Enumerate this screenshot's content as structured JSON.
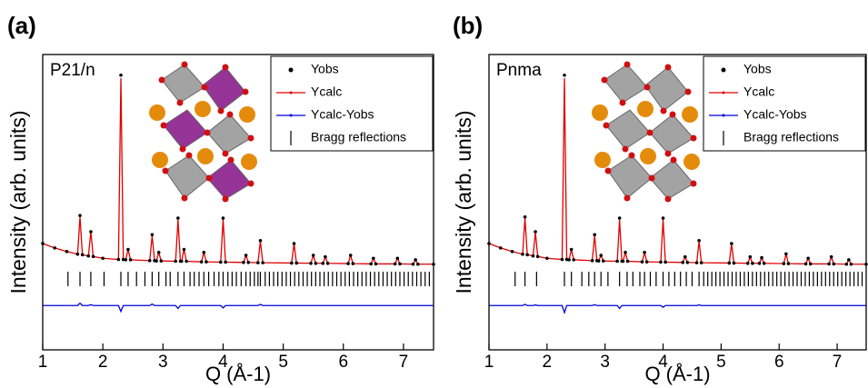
{
  "chart_data": [
    {
      "type": "line",
      "panel_label": "(a)",
      "title": "P21/n",
      "xlabel": "Q (Å-1)",
      "ylabel": "Intensity (arb. units)",
      "xlim": [
        1,
        7.5
      ],
      "xticks": [
        1,
        2,
        3,
        4,
        5,
        6,
        7
      ],
      "ylim": [
        0,
        100
      ],
      "legend": "upper right",
      "x": [
        1.0,
        1.2,
        1.4,
        1.58,
        1.62,
        1.66,
        1.76,
        1.8,
        1.84,
        2.0,
        2.26,
        2.3,
        2.34,
        2.38,
        2.42,
        2.46,
        2.78,
        2.82,
        2.86,
        2.89,
        2.93,
        2.97,
        3.21,
        3.25,
        3.29,
        3.31,
        3.35,
        3.39,
        3.64,
        3.68,
        3.72,
        3.96,
        4.0,
        4.04,
        4.34,
        4.38,
        4.42,
        4.58,
        4.62,
        4.66,
        5.14,
        5.18,
        5.22,
        5.46,
        5.5,
        5.54,
        5.66,
        5.7,
        5.74,
        6.08,
        6.12,
        6.16,
        6.46,
        6.5,
        6.54,
        6.86,
        6.9,
        6.94,
        7.16,
        7.2,
        7.24,
        7.5
      ],
      "series": [
        {
          "name": "Yobs",
          "style": "points",
          "color": "#000000",
          "values": [
            36,
            34.5,
            33.3,
            32.4,
            45.5,
            32.2,
            31.8,
            40,
            31.6,
            31,
            30.6,
            93,
            30.6,
            30.5,
            34,
            30.5,
            30.2,
            39,
            30.2,
            30.1,
            33,
            30.1,
            30,
            44.6,
            30,
            30,
            34,
            30,
            29.8,
            33,
            29.8,
            29.7,
            44.6,
            29.7,
            29.6,
            32,
            29.6,
            29.5,
            37,
            29.5,
            29.4,
            36,
            29.4,
            29.3,
            32,
            29.3,
            29.3,
            31.5,
            29.3,
            29.2,
            32,
            29.2,
            29.1,
            31,
            29.1,
            29.1,
            31,
            29.1,
            29,
            30.5,
            29,
            29
          ]
        },
        {
          "name": "Ycalc",
          "style": "line",
          "color": "#e00000",
          "values": [
            36,
            34.5,
            33.3,
            32.4,
            45,
            32.2,
            31.8,
            40,
            31.6,
            31,
            30.6,
            92,
            30.6,
            30.5,
            34,
            30.5,
            30.2,
            38.6,
            30.2,
            30.1,
            33,
            30.1,
            30,
            44,
            30,
            30,
            34,
            30,
            29.8,
            33,
            29.8,
            29.7,
            44.2,
            29.7,
            29.6,
            32,
            29.6,
            29.5,
            36.8,
            29.5,
            29.4,
            36,
            29.4,
            29.3,
            32,
            29.3,
            29.3,
            31.5,
            29.3,
            29.2,
            32,
            29.2,
            29.1,
            31,
            29.1,
            29.1,
            31,
            29.1,
            29,
            30.5,
            29,
            29
          ]
        },
        {
          "name": "Ycalc-Yobs",
          "style": "line",
          "color": "#0000e0",
          "values": [
            15,
            15,
            15,
            15,
            15.8,
            15,
            15,
            15.3,
            15,
            15,
            15,
            13,
            15,
            15,
            15,
            15,
            15,
            15.5,
            15,
            15,
            15,
            15,
            15,
            14,
            15,
            15,
            15,
            15,
            15,
            15,
            15,
            15,
            14.2,
            15,
            15,
            15,
            15,
            15,
            15.4,
            15,
            15,
            15,
            15,
            15,
            15,
            15,
            15,
            15,
            15,
            15,
            15,
            15,
            15,
            15,
            15,
            15,
            15,
            15,
            15,
            15,
            15,
            15
          ]
        },
        {
          "name": "Bragg reflections",
          "style": "ticks",
          "color": "#000000",
          "x": [
            1.42,
            1.62,
            1.8,
            2.02,
            2.3,
            2.42,
            2.56,
            2.7,
            2.82,
            2.93,
            3.05,
            3.12,
            3.25,
            3.35,
            3.45,
            3.52,
            3.6,
            3.68,
            3.76,
            3.85,
            3.93,
            4.0,
            4.08,
            4.15,
            4.22,
            4.3,
            4.38,
            4.45,
            4.52,
            4.58,
            4.62,
            4.7,
            4.77,
            4.84,
            4.91,
            4.98,
            5.05,
            5.12,
            5.19,
            5.26,
            5.33,
            5.4,
            5.47,
            5.54,
            5.61,
            5.68,
            5.75,
            5.82,
            5.89,
            5.96,
            6.03,
            6.1,
            6.17,
            6.24,
            6.31,
            6.38,
            6.45,
            6.52,
            6.59,
            6.66,
            6.73,
            6.8,
            6.87,
            6.94,
            7.01,
            7.08,
            7.15,
            7.22,
            7.29,
            7.36,
            7.43
          ],
          "values": [
            24,
            24,
            24,
            24,
            24,
            24,
            24,
            24,
            24,
            24,
            24,
            24,
            24,
            24,
            24,
            24,
            24,
            24,
            24,
            24,
            24,
            24,
            24,
            24,
            24,
            24,
            24,
            24,
            24,
            24,
            24,
            24,
            24,
            24,
            24,
            24,
            24,
            24,
            24,
            24,
            24,
            24,
            24,
            24,
            24,
            24,
            24,
            24,
            24,
            24,
            24,
            24,
            24,
            24,
            24,
            24,
            24,
            24,
            24,
            24,
            24,
            24,
            24,
            24,
            24,
            24,
            24,
            24,
            24,
            24,
            24
          ]
        }
      ]
    },
    {
      "type": "line",
      "panel_label": "(b)",
      "title": "Pnma",
      "xlabel": "Q (Å-1)",
      "ylabel": "Intensity (arb. units)",
      "xlim": [
        1,
        7.5
      ],
      "xticks": [
        1,
        2,
        3,
        4,
        5,
        6,
        7
      ],
      "ylim": [
        0,
        100
      ],
      "legend": "upper right",
      "x": [
        1.0,
        1.2,
        1.4,
        1.58,
        1.62,
        1.66,
        1.76,
        1.8,
        1.84,
        2.0,
        2.26,
        2.3,
        2.34,
        2.38,
        2.42,
        2.46,
        2.78,
        2.82,
        2.86,
        2.89,
        2.93,
        2.97,
        3.21,
        3.25,
        3.29,
        3.31,
        3.35,
        3.39,
        3.64,
        3.68,
        3.72,
        3.96,
        4.0,
        4.04,
        4.34,
        4.38,
        4.42,
        4.58,
        4.62,
        4.66,
        5.14,
        5.18,
        5.22,
        5.46,
        5.5,
        5.54,
        5.66,
        5.7,
        5.74,
        6.08,
        6.12,
        6.16,
        6.46,
        6.5,
        6.54,
        6.86,
        6.9,
        6.94,
        7.16,
        7.2,
        7.24,
        7.5
      ],
      "series": [
        {
          "name": "Yobs",
          "style": "points",
          "color": "#000000",
          "values": [
            36,
            34.5,
            33.3,
            32.4,
            45,
            32.2,
            31.8,
            40,
            31.6,
            31,
            30.6,
            93,
            30.6,
            30.5,
            34,
            30.5,
            30.2,
            39,
            30.2,
            30.1,
            32,
            30.1,
            30,
            44.6,
            30,
            30,
            33,
            30,
            29.8,
            33,
            29.8,
            29.7,
            44.6,
            29.7,
            29.6,
            31.5,
            29.6,
            29.5,
            37,
            29.5,
            29.4,
            36,
            29.4,
            29.3,
            31.5,
            29.3,
            29.3,
            31.2,
            29.3,
            29.2,
            32.5,
            29.2,
            29.1,
            31,
            29.1,
            29.1,
            31.5,
            29.1,
            29,
            30.5,
            29,
            29
          ]
        },
        {
          "name": "Ycalc",
          "style": "line",
          "color": "#e00000",
          "values": [
            36,
            34.5,
            33.3,
            32.4,
            44.6,
            32.2,
            31.8,
            39.8,
            31.6,
            31,
            30.6,
            92,
            30.6,
            30.5,
            34,
            30.5,
            30.2,
            38.7,
            30.2,
            30.1,
            32,
            30.1,
            30,
            44,
            30,
            30,
            33,
            30,
            29.8,
            33,
            29.8,
            29.7,
            44.1,
            29.7,
            29.6,
            31.5,
            29.6,
            29.5,
            36.8,
            29.5,
            29.4,
            36,
            29.4,
            29.3,
            31.5,
            29.3,
            29.3,
            31.2,
            29.3,
            29.2,
            32.5,
            29.2,
            29.1,
            31,
            29.1,
            29.1,
            31.5,
            29.1,
            29,
            30.5,
            29,
            29
          ]
        },
        {
          "name": "Ycalc-Yobs",
          "style": "line",
          "color": "#0000e0",
          "values": [
            15,
            15,
            15,
            15,
            15.4,
            15,
            15,
            15.2,
            15,
            15,
            15,
            12.6,
            15,
            15,
            15,
            15,
            15,
            15.3,
            15,
            15,
            15,
            15,
            15,
            14,
            15,
            15,
            15,
            15,
            15,
            15,
            15,
            15,
            14.4,
            15,
            15,
            15,
            15,
            15,
            15.2,
            15,
            15,
            15,
            15,
            15,
            15,
            15,
            15,
            15,
            15,
            15,
            15,
            15,
            15,
            15,
            15,
            15,
            15,
            15,
            15,
            15,
            15,
            15
          ]
        },
        {
          "name": "Bragg reflections",
          "style": "ticks",
          "color": "#000000",
          "x": [
            1.45,
            1.62,
            1.82,
            2.3,
            2.42,
            2.6,
            2.72,
            2.82,
            2.93,
            3.05,
            3.25,
            3.38,
            3.48,
            3.6,
            3.68,
            3.78,
            3.88,
            4.0,
            4.1,
            4.2,
            4.3,
            4.4,
            4.5,
            4.62,
            4.7,
            4.77,
            4.84,
            4.91,
            4.98,
            5.05,
            5.12,
            5.19,
            5.26,
            5.33,
            5.4,
            5.47,
            5.54,
            5.61,
            5.68,
            5.75,
            5.82,
            5.89,
            5.96,
            6.03,
            6.1,
            6.17,
            6.24,
            6.31,
            6.38,
            6.45,
            6.52,
            6.59,
            6.66,
            6.73,
            6.8,
            6.87,
            6.94,
            7.01,
            7.08,
            7.15,
            7.22,
            7.29,
            7.36,
            7.43
          ],
          "values": [
            24,
            24,
            24,
            24,
            24,
            24,
            24,
            24,
            24,
            24,
            24,
            24,
            24,
            24,
            24,
            24,
            24,
            24,
            24,
            24,
            24,
            24,
            24,
            24,
            24,
            24,
            24,
            24,
            24,
            24,
            24,
            24,
            24,
            24,
            24,
            24,
            24,
            24,
            24,
            24,
            24,
            24,
            24,
            24,
            24,
            24,
            24,
            24,
            24,
            24,
            24,
            24,
            24,
            24,
            24,
            24,
            24,
            24,
            24,
            24,
            24,
            24,
            24,
            24
          ]
        }
      ]
    }
  ]
}
